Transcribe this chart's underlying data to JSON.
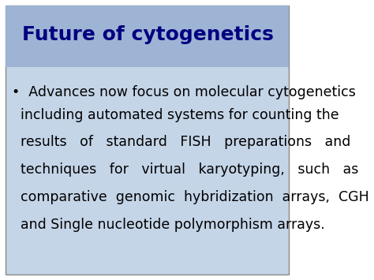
{
  "title": "Future of cytogenetics",
  "title_color": "#000080",
  "title_bg_color": "#9EB4D5",
  "body_bg_color": "#C5D5E8",
  "outer_bg_color": "#FFFFFF",
  "bullet_line1": "•  Advances now focus on molecular cytogenetics",
  "body_text_lines": [
    "including automated systems for counting the",
    "results   of   standard   FISH   preparations   and",
    "techniques   for   virtual   karyotyping,   such   as",
    "comparative  genomic  hybridization  arrays,  CGH",
    "and Single nucleotide polymorphism arrays."
  ],
  "text_color": "#000000",
  "title_fontsize": 18,
  "body_fontsize": 12.5,
  "figsize": [
    4.74,
    3.55
  ],
  "dpi": 100
}
